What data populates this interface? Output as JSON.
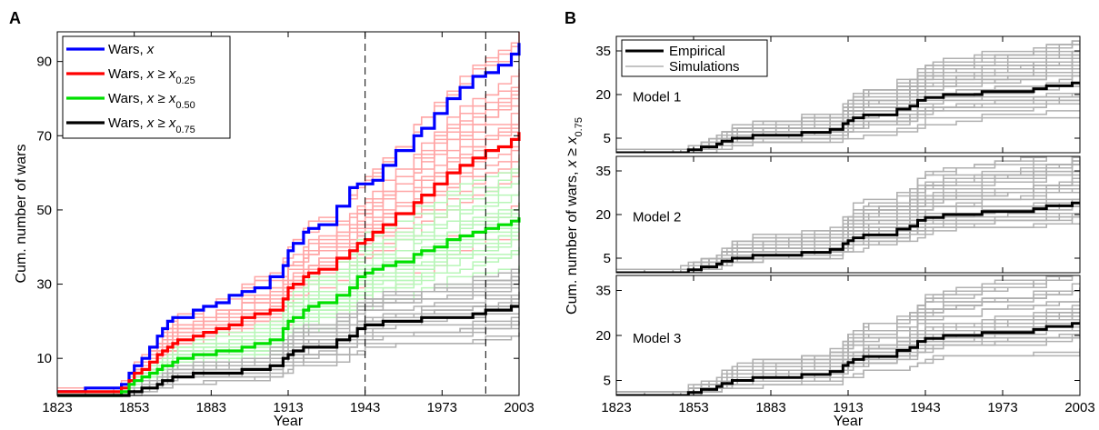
{
  "figure": {
    "panel_a_letter": "A",
    "panel_b_letter": "B"
  },
  "chart_data": [
    {
      "type": "line",
      "panel": "A",
      "xlabel": "Year",
      "ylabel": "Cum. number of wars",
      "xlim": [
        1823,
        2003
      ],
      "ylim": [
        0,
        98
      ],
      "xticks": [
        1823,
        1853,
        1883,
        1913,
        1943,
        1973,
        2003
      ],
      "yticks": [
        10,
        30,
        50,
        70,
        90
      ],
      "vlines": [
        1943,
        1990
      ],
      "legend_position": "top-left",
      "legend": [
        {
          "main": "Wars, ",
          "var": "x",
          "rel": "",
          "sub": "",
          "color": "#0000ff"
        },
        {
          "main": "Wars, ",
          "var": "x",
          "rel": " ≥ x",
          "sub": "0.25",
          "color": "#ff0000"
        },
        {
          "main": "Wars, ",
          "var": "x",
          "rel": " ≥ x",
          "sub": "0.50",
          "color": "#00e000"
        },
        {
          "main": "Wars, ",
          "var": "x",
          "rel": " ≥ x",
          "sub": "0.75",
          "color": "#000000"
        }
      ],
      "series": [
        {
          "color": "#0000ff",
          "x": [
            1823,
            1834,
            1845,
            1848,
            1851,
            1853,
            1856,
            1859,
            1862,
            1864,
            1866,
            1868,
            1870,
            1876,
            1880,
            1885,
            1890,
            1895,
            1900,
            1906,
            1911,
            1913,
            1915,
            1919,
            1921,
            1925,
            1932,
            1937,
            1940,
            1943,
            1946,
            1950,
            1955,
            1962,
            1965,
            1970,
            1975,
            1980,
            1985,
            1990,
            1995,
            2000,
            2003
          ],
          "y": [
            1,
            2,
            2,
            3,
            6,
            8,
            10,
            13,
            16,
            18,
            20,
            21,
            21,
            23,
            24,
            25,
            27,
            28,
            29,
            32,
            35,
            39,
            41,
            44,
            45,
            46,
            51,
            56,
            57,
            57,
            58,
            62,
            66,
            70,
            72,
            76,
            80,
            83,
            86,
            87,
            89,
            92,
            95
          ]
        },
        {
          "color": "#ff0000",
          "x": [
            1823,
            1834,
            1845,
            1848,
            1851,
            1853,
            1856,
            1859,
            1862,
            1864,
            1866,
            1868,
            1870,
            1876,
            1880,
            1885,
            1890,
            1895,
            1900,
            1906,
            1911,
            1913,
            1915,
            1919,
            1921,
            1925,
            1932,
            1937,
            1940,
            1943,
            1946,
            1950,
            1955,
            1962,
            1965,
            1970,
            1975,
            1980,
            1985,
            1990,
            1995,
            2000,
            2003
          ],
          "y": [
            1,
            1,
            1,
            2,
            4,
            6,
            7,
            9,
            11,
            12,
            13,
            14,
            15,
            16,
            17,
            18,
            19,
            21,
            22,
            23,
            26,
            29,
            30,
            32,
            33,
            34,
            37,
            39,
            41,
            42,
            44,
            46,
            49,
            52,
            54,
            57,
            60,
            62,
            64,
            66,
            67,
            69,
            71
          ]
        },
        {
          "color": "#00e000",
          "x": [
            1823,
            1834,
            1845,
            1848,
            1851,
            1853,
            1856,
            1859,
            1862,
            1864,
            1866,
            1868,
            1870,
            1876,
            1880,
            1885,
            1890,
            1895,
            1900,
            1906,
            1911,
            1913,
            1915,
            1919,
            1921,
            1925,
            1932,
            1937,
            1940,
            1943,
            1946,
            1950,
            1955,
            1962,
            1965,
            1970,
            1975,
            1980,
            1985,
            1990,
            1995,
            2000,
            2003
          ],
          "y": [
            0,
            0,
            0,
            1,
            3,
            4,
            5,
            6,
            7,
            8,
            8,
            9,
            10,
            11,
            11,
            12,
            12,
            13,
            14,
            15,
            18,
            20,
            21,
            23,
            24,
            25,
            27,
            29,
            32,
            33,
            34,
            35,
            36,
            38,
            39,
            40,
            42,
            43,
            44,
            45,
            46,
            47,
            48
          ]
        },
        {
          "color": "#000000",
          "x": [
            1823,
            1834,
            1845,
            1848,
            1851,
            1853,
            1856,
            1859,
            1862,
            1864,
            1866,
            1868,
            1870,
            1876,
            1880,
            1885,
            1890,
            1895,
            1900,
            1906,
            1911,
            1913,
            1915,
            1919,
            1921,
            1925,
            1932,
            1937,
            1940,
            1943,
            1946,
            1950,
            1955,
            1962,
            1965,
            1970,
            1975,
            1980,
            1985,
            1990,
            1995,
            2000,
            2003
          ],
          "y": [
            0,
            0,
            0,
            0,
            1,
            1,
            2,
            2,
            3,
            4,
            4,
            5,
            5,
            6,
            6,
            6,
            6,
            7,
            7,
            8,
            10,
            11,
            12,
            13,
            13,
            13,
            15,
            16,
            18,
            19,
            19,
            20,
            20,
            20,
            21,
            21,
            21,
            21,
            22,
            23,
            23,
            24,
            24
          ]
        }
      ]
    },
    {
      "type": "line",
      "panel": "B",
      "xlabel": "Year",
      "ylabel_main": "Cum. number of wars, ",
      "ylabel_var": "x ≥ x",
      "ylabel_sub": "0.75",
      "xlim": [
        1823,
        2003
      ],
      "xticks": [
        1823,
        1853,
        1883,
        1913,
        1943,
        1973,
        2003
      ],
      "yticks": [
        5,
        20,
        35
      ],
      "legend_position": "top-left",
      "legend": [
        {
          "label": "Empirical",
          "color": "#000000"
        },
        {
          "label": "Simulations",
          "color": "#b0b0b0"
        }
      ],
      "subplots": [
        {
          "label": "Model 1",
          "ylim": [
            0,
            40
          ]
        },
        {
          "label": "Model 2",
          "ylim": [
            0,
            40
          ]
        },
        {
          "label": "Model 3",
          "ylim": [
            0,
            40
          ]
        }
      ],
      "empirical": {
        "x": [
          1823,
          1834,
          1845,
          1848,
          1851,
          1853,
          1856,
          1859,
          1862,
          1864,
          1866,
          1868,
          1870,
          1876,
          1880,
          1885,
          1890,
          1895,
          1900,
          1906,
          1911,
          1913,
          1915,
          1919,
          1921,
          1925,
          1932,
          1937,
          1940,
          1943,
          1946,
          1950,
          1955,
          1962,
          1965,
          1970,
          1975,
          1980,
          1985,
          1990,
          1995,
          2000,
          2003
        ],
        "y": [
          0,
          0,
          0,
          0,
          1,
          1,
          2,
          2,
          3,
          4,
          4,
          5,
          5,
          6,
          6,
          6,
          6,
          7,
          7,
          8,
          10,
          11,
          12,
          13,
          13,
          13,
          15,
          16,
          18,
          19,
          19,
          20,
          20,
          20,
          21,
          21,
          21,
          21,
          22,
          23,
          23,
          24,
          24
        ]
      }
    }
  ]
}
